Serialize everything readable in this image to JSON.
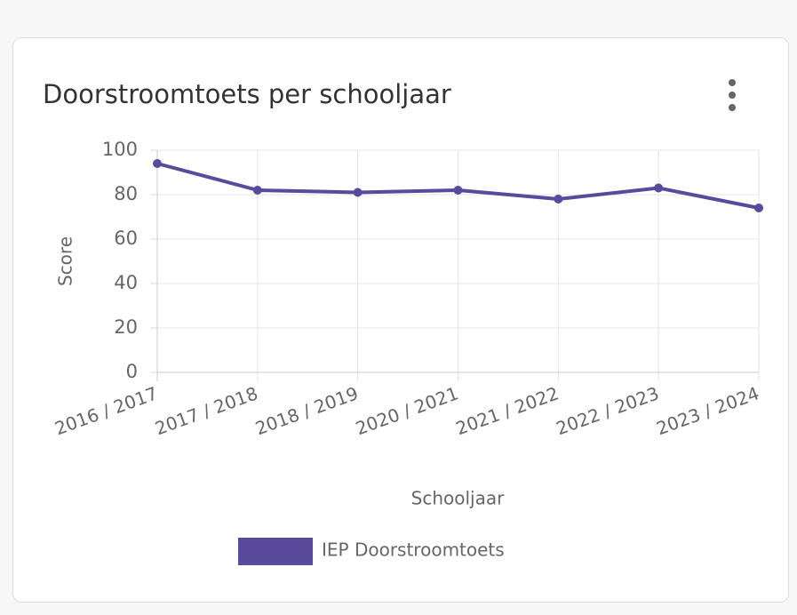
{
  "chart_data": {
    "type": "line",
    "title": "Doorstroomtoets per schooljaar",
    "xlabel": "Schooljaar",
    "ylabel": "Score",
    "categories": [
      "2016 / 2017",
      "2017 / 2018",
      "2018 / 2019",
      "2020 / 2021",
      "2021 / 2022",
      "2022 / 2023",
      "2023 / 2024"
    ],
    "series": [
      {
        "name": "IEP Doorstroomtoets",
        "color": "#5a4a9c",
        "values": [
          94,
          82,
          81,
          82,
          78,
          83,
          74
        ]
      }
    ],
    "ylim": [
      0,
      100
    ],
    "yticks": [
      0,
      20,
      40,
      60,
      80,
      100
    ],
    "grid": true,
    "legend": "bottom"
  }
}
